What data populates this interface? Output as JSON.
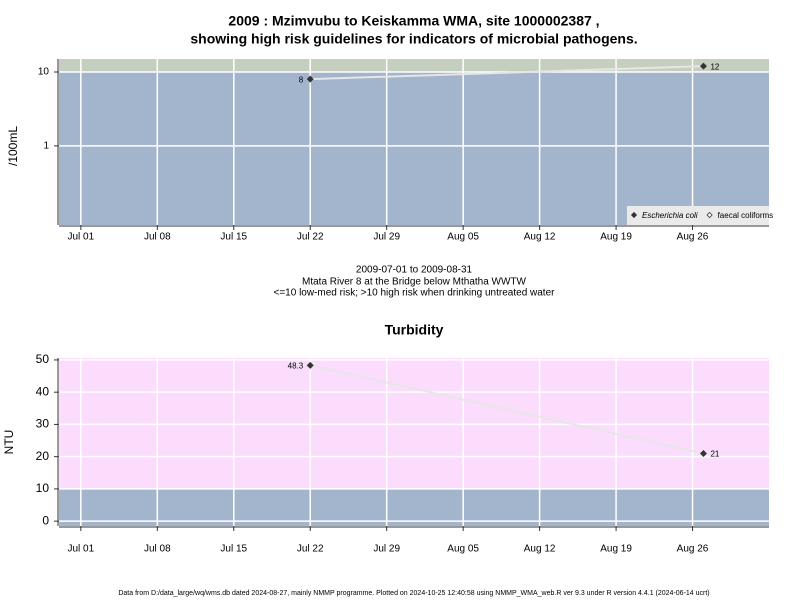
{
  "chart_data": [
    {
      "type": "line",
      "title": "2009 : Mzimvubu to Keiskamma WMA, site 1000002387 ,",
      "subtitle": "showing high risk guidelines for indicators of microbial pathogens.",
      "y_label": "/100mL",
      "log_scale": true,
      "x": [
        "2009-07-22",
        "2009-08-27"
      ],
      "series": [
        {
          "name": "Escherichia coli",
          "color": "#333333",
          "values": [
            8,
            12
          ]
        },
        {
          "name": "faecal coliforms",
          "color": "#333333",
          "values": [
            null,
            null
          ]
        }
      ],
      "xlim": [
        "2009-06-29",
        "2009-09-02"
      ],
      "xticks": [
        {
          "value": "2009-07-01",
          "label": "Jul 01"
        },
        {
          "value": "2009-07-08",
          "label": "Jul 08"
        },
        {
          "value": "2009-07-15",
          "label": "Jul 15"
        },
        {
          "value": "2009-07-22",
          "label": "Jul 22"
        },
        {
          "value": "2009-07-29",
          "label": "Jul 29"
        },
        {
          "value": "2009-08-05",
          "label": "Aug 05"
        },
        {
          "value": "2009-08-12",
          "label": "Aug 12"
        },
        {
          "value": "2009-08-19",
          "label": "Aug 19"
        },
        {
          "value": "2009-08-26",
          "label": "Aug 26"
        }
      ],
      "ylim": [
        0.085,
        15
      ],
      "yticks": [
        1,
        10
      ],
      "threshold": 10,
      "below_color": "#a3b5cd",
      "above_color": "#c5cfbf",
      "grid": true,
      "legend": "bottom-right",
      "notes": [
        "2009-07-01 to 2009-08-31",
        "Mtata River 8 at the Bridge below Mthatha WWTW",
        "<=10 low-med risk; >10 high risk when drinking untreated water"
      ]
    },
    {
      "type": "line",
      "title": "Turbidity",
      "y_label": "NTU",
      "log_scale": false,
      "x": [
        "2009-07-22",
        "2009-08-27"
      ],
      "series": [
        {
          "name": "Turbidity",
          "color": "#333333",
          "values": [
            48.3,
            21
          ]
        }
      ],
      "xlim": [
        "2009-06-29",
        "2009-09-02"
      ],
      "xticks": [
        {
          "value": "2009-07-01",
          "label": "Jul 01"
        },
        {
          "value": "2009-07-08",
          "label": "Jul 08"
        },
        {
          "value": "2009-07-15",
          "label": "Jul 15"
        },
        {
          "value": "2009-07-22",
          "label": "Jul 22"
        },
        {
          "value": "2009-07-29",
          "label": "Jul 29"
        },
        {
          "value": "2009-08-05",
          "label": "Aug 05"
        },
        {
          "value": "2009-08-12",
          "label": "Aug 12"
        },
        {
          "value": "2009-08-19",
          "label": "Aug 19"
        },
        {
          "value": "2009-08-26",
          "label": "Aug 26"
        }
      ],
      "ylim": [
        -1.5,
        50.6
      ],
      "yticks": [
        0,
        10,
        20,
        30,
        40,
        50
      ],
      "threshold": 10,
      "below_color": "#a3b5cd",
      "above_color": "#fcdcfc",
      "grid": true
    }
  ],
  "footer": "Data from D:/data_large/wq/wms.db dated 2024-08-27, mainly NMMP programme. Plotted on 2024-10-25 12:40:58 using NMMP_WMA_web.R ver 9.3 under R version 4.4.1 (2024-06-14 ucrt)"
}
